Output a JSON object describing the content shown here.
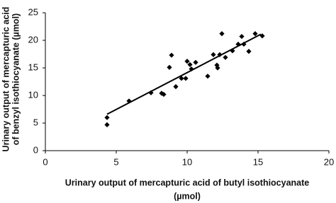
{
  "chart_data": {
    "type": "scatter",
    "x_label": [
      "Urinary output of mercapturic acid of butyl isothiocyanate",
      "(µmol)"
    ],
    "y_label": [
      "Urinary output of mercapturic acid",
      "of benzyl isothiocyanate (µmol)"
    ],
    "x": [
      4.35,
      4.35,
      5.9,
      7.45,
      8.2,
      8.35,
      8.75,
      8.9,
      9.2,
      9.6,
      9.9,
      10.0,
      10.2,
      10.3,
      10.6,
      11.45,
      11.85,
      12.1,
      12.15,
      12.3,
      12.45,
      12.7,
      13.2,
      13.6,
      13.85,
      14.0,
      14.35,
      14.8,
      15.3
    ],
    "values": [
      6.0,
      4.7,
      9.0,
      10.5,
      10.4,
      10.2,
      15.1,
      17.3,
      11.6,
      13.1,
      13.1,
      16.2,
      15.6,
      14.8,
      16.0,
      13.5,
      17.4,
      15.5,
      15.0,
      17.4,
      21.2,
      16.9,
      18.1,
      19.3,
      20.7,
      19.3,
      18.0,
      21.2,
      20.8
    ],
    "color": "#000000",
    "trend_line": {
      "x": [
        4.35,
        15.2
      ],
      "y": [
        6.6,
        21.1
      ]
    },
    "xlim": [
      0,
      20
    ],
    "xticks": [
      0,
      5,
      10,
      15,
      20
    ],
    "ylim": [
      0,
      25
    ],
    "yticks": [
      0,
      5,
      10,
      15,
      20,
      25
    ]
  }
}
